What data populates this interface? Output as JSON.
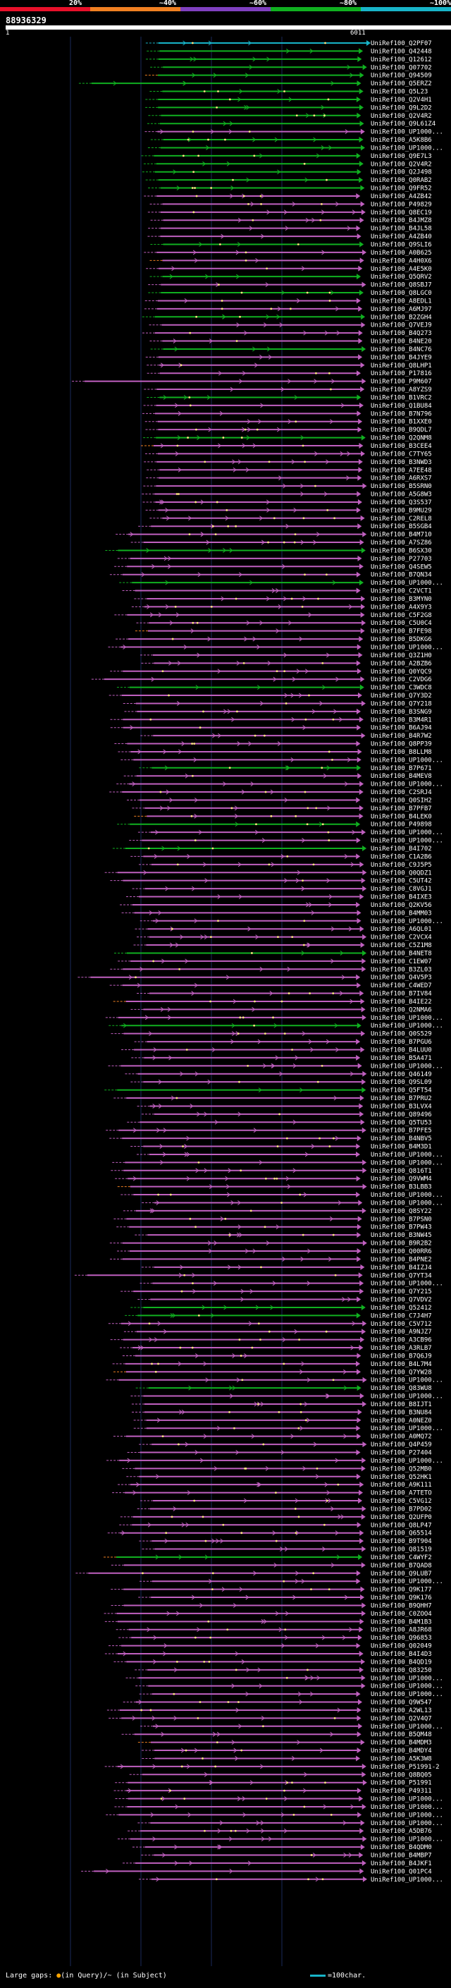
{
  "legend": {
    "labels": [
      "20%",
      "~40%",
      "~60%",
      "~80%",
      "~100%"
    ],
    "colors": [
      "#e8102a",
      "#f08022",
      "#8040c0",
      "#10b020",
      "#18b4c8"
    ]
  },
  "query": {
    "title": "88936329",
    "start": "1",
    "end": "6011"
  },
  "hits": [
    {
      "label": "UniRef100_Q2PF07",
      "color": "#18b4c8"
    },
    {
      "label": "UniRef100_Q42448",
      "color": "#10b020"
    },
    {
      "label": "UniRef100_Q12612",
      "color": "#10b020"
    },
    {
      "label": "UniRef100_Q07702",
      "color": "#10b020"
    },
    {
      "label": "UniRef100_Q94509",
      "color": "#10b020"
    },
    {
      "label": "UniRef100_Q5ERZ2",
      "color": "#10b020"
    },
    {
      "label": "UniRef100_Q5L23",
      "color": "#10b020"
    },
    {
      "label": "UniRef100_Q2V4H1",
      "color": "#10b020"
    },
    {
      "label": "UniRef100_Q9L2D2",
      "color": "#10b020"
    },
    {
      "label": "UniRef100_Q2V4R2",
      "color": "#10b020"
    },
    {
      "label": "UniRef100_Q9L61Z4",
      "color": "#10b020"
    },
    {
      "label": "UniRef100_UP1000...",
      "color": "#c060c0"
    },
    {
      "label": "UniRef100_A5K8B6",
      "color": "#10b020"
    },
    {
      "label": "UniRef100_UP1000...",
      "color": "#10b020"
    },
    {
      "label": "UniRef100_Q9E7L3",
      "color": "#10b020"
    },
    {
      "label": "UniRef100_Q2V4R2",
      "color": "#10b020"
    },
    {
      "label": "UniRef100_Q2J498",
      "color": "#10b020"
    },
    {
      "label": "UniRef100_Q0RAB2",
      "color": "#10b020"
    },
    {
      "label": "UniRef100_Q9FR52",
      "color": "#10b020"
    },
    {
      "label": "UniRef100_A4ZB42",
      "color": "#c060c0"
    },
    {
      "label": "UniRef100_P49829",
      "color": "#c060c0"
    },
    {
      "label": "UniRef100_Q8EC19",
      "color": "#c060c0"
    },
    {
      "label": "UniRef100_B4JMZ8",
      "color": "#c060c0"
    },
    {
      "label": "UniRef100_B4JL58",
      "color": "#c060c0"
    },
    {
      "label": "UniRef100_A4ZB40",
      "color": "#c060c0"
    },
    {
      "label": "UniRef100_Q9SLI6",
      "color": "#10b020"
    },
    {
      "label": "UniRef100_A0B625",
      "color": "#c060c0"
    },
    {
      "label": "UniRef100_A4H0X6",
      "color": "#c060c0"
    },
    {
      "label": "UniRef100_A4E5K0",
      "color": "#c060c0"
    },
    {
      "label": "UniRef100_Q5QRV2",
      "color": "#10b020"
    },
    {
      "label": "UniRef100_Q8SBJ7",
      "color": "#c060c0"
    },
    {
      "label": "UniRef100_Q8LGC0",
      "color": "#10b020"
    },
    {
      "label": "UniRef100_A8EDL1",
      "color": "#c060c0"
    },
    {
      "label": "UniRef100_A6MJ97",
      "color": "#c060c0"
    },
    {
      "label": "UniRef100_B2ZGH4",
      "color": "#10b020"
    },
    {
      "label": "UniRef100_Q7VEJ9",
      "color": "#c060c0"
    },
    {
      "label": "UniRef100_B4Q273",
      "color": "#c060c0"
    },
    {
      "label": "UniRef100_B4NE20",
      "color": "#c060c0"
    },
    {
      "label": "UniRef100_B4NC76",
      "color": "#10b020"
    },
    {
      "label": "UniRef100_B4JYE9",
      "color": "#c060c0"
    },
    {
      "label": "UniRef100_Q8LHP1",
      "color": "#c060c0"
    },
    {
      "label": "UniRef100_P17816",
      "color": "#c060c0"
    },
    {
      "label": "UniRef100_P9M607",
      "color": "#c060c0"
    },
    {
      "label": "UniRef100_A8YZS9",
      "color": "#c060c0"
    },
    {
      "label": "UniRef100_B1VRC2",
      "color": "#10b020"
    },
    {
      "label": "UniRef100_Q1BU84",
      "color": "#c060c0"
    },
    {
      "label": "UniRef100_B7N796",
      "color": "#c060c0"
    },
    {
      "label": "UniRef100_B1XXE0",
      "color": "#c060c0"
    },
    {
      "label": "UniRef100_B9QDL7",
      "color": "#c060c0"
    },
    {
      "label": "UniRef100_Q2QNM8",
      "color": "#10b020"
    },
    {
      "label": "UniRef100_B3CEE4",
      "color": "#c060c0"
    },
    {
      "label": "UniRef100_C7TY65",
      "color": "#c060c0"
    },
    {
      "label": "UniRef100_B3NWD3",
      "color": "#c060c0"
    },
    {
      "label": "UniRef100_A7EE48",
      "color": "#c060c0"
    },
    {
      "label": "UniRef100_A6RXS7",
      "color": "#c060c0"
    },
    {
      "label": "UniRef100_B5SRN0",
      "color": "#c060c0"
    },
    {
      "label": "UniRef100_A5G8W3",
      "color": "#c060c0"
    },
    {
      "label": "UniRef100_Q3S537",
      "color": "#c060c0"
    },
    {
      "label": "UniRef100_B9MU29",
      "color": "#c060c0"
    },
    {
      "label": "UniRef100_C2REL8",
      "color": "#c060c0"
    },
    {
      "label": "UniRef100_B5SGB4",
      "color": "#c060c0"
    },
    {
      "label": "UniRef100_B4M710",
      "color": "#c060c0"
    },
    {
      "label": "UniRef100_A7SZ86",
      "color": "#c060c0"
    },
    {
      "label": "UniRef100_B6SX30",
      "color": "#10b020"
    },
    {
      "label": "UniRef100_P27703",
      "color": "#c060c0"
    },
    {
      "label": "UniRef100_Q4SEW5",
      "color": "#c060c0"
    },
    {
      "label": "UniRef100_B7QN34",
      "color": "#c060c0"
    },
    {
      "label": "UniRef100_UP1000...",
      "color": "#10b020"
    },
    {
      "label": "UniRef100_C2VCT1",
      "color": "#c060c0"
    },
    {
      "label": "UniRef100_B3MYN0",
      "color": "#c060c0"
    },
    {
      "label": "UniRef100_A4X9Y3",
      "color": "#c060c0"
    },
    {
      "label": "UniRef100_C5F2G8",
      "color": "#c060c0"
    },
    {
      "label": "UniRef100_C5U0C4",
      "color": "#c060c0"
    },
    {
      "label": "UniRef100_B7FE98",
      "color": "#c060c0"
    },
    {
      "label": "UniRef100_B5DKG6",
      "color": "#c060c0"
    },
    {
      "label": "UniRef100_UP1000...",
      "color": "#c060c0"
    },
    {
      "label": "UniRef100_Q3Z1H0",
      "color": "#c060c0"
    },
    {
      "label": "UniRef100_A2BZB6",
      "color": "#c060c0"
    },
    {
      "label": "UniRef100_Q0YQC9",
      "color": "#c060c0"
    },
    {
      "label": "UniRef100_C2VDG6",
      "color": "#c060c0"
    },
    {
      "label": "UniRef100_C3WDC8",
      "color": "#10b020"
    },
    {
      "label": "UniRef100_Q7Y3D2",
      "color": "#c060c0"
    },
    {
      "label": "UniRef100_Q7Y218",
      "color": "#c060c0"
    },
    {
      "label": "UniRef100_B3SNG9",
      "color": "#c060c0"
    },
    {
      "label": "UniRef100_B3M4R1",
      "color": "#c060c0"
    },
    {
      "label": "UniRef100_B6AJ94",
      "color": "#c060c0"
    },
    {
      "label": "UniRef100_B4R7W2",
      "color": "#c060c0"
    },
    {
      "label": "UniRef100_Q8PP39",
      "color": "#c060c0"
    },
    {
      "label": "UniRef100_B8LLM8",
      "color": "#c060c0"
    },
    {
      "label": "UniRef100_UP1000...",
      "color": "#c060c0"
    },
    {
      "label": "UniRef100_B7P671",
      "color": "#10b020"
    },
    {
      "label": "UniRef100_B4MEV8",
      "color": "#c060c0"
    },
    {
      "label": "UniRef100_UP1000...",
      "color": "#c060c0"
    },
    {
      "label": "UniRef100_C2SRJ4",
      "color": "#c060c0"
    },
    {
      "label": "UniRef100_Q0SIH2",
      "color": "#c060c0"
    },
    {
      "label": "UniRef100_B7PFB7",
      "color": "#c060c0"
    },
    {
      "label": "UniRef100_B4LEK0",
      "color": "#c060c0"
    },
    {
      "label": "UniRef100_P49898",
      "color": "#10b020"
    },
    {
      "label": "UniRef100_UP1000...",
      "color": "#c060c0"
    },
    {
      "label": "UniRef100_UP1000...",
      "color": "#c060c0"
    },
    {
      "label": "UniRef100_B4I702",
      "color": "#10b020"
    },
    {
      "label": "UniRef100_C1A2B6",
      "color": "#c060c0"
    },
    {
      "label": "UniRef100_C9J5P5",
      "color": "#c060c0"
    },
    {
      "label": "UniRef100_Q0QDZ1",
      "color": "#c060c0"
    },
    {
      "label": "UniRef100_C5UT42",
      "color": "#c060c0"
    },
    {
      "label": "UniRef100_C8VGJ1",
      "color": "#c060c0"
    },
    {
      "label": "UniRef100_B4IXE3",
      "color": "#c060c0"
    },
    {
      "label": "UniRef100_Q2KV56",
      "color": "#c060c0"
    },
    {
      "label": "UniRef100_B4MM03",
      "color": "#c060c0"
    },
    {
      "label": "UniRef100_UP1000...",
      "color": "#c060c0"
    },
    {
      "label": "UniRef100_A6QL01",
      "color": "#c060c0"
    },
    {
      "label": "UniRef100_C2VCX4",
      "color": "#c060c0"
    },
    {
      "label": "UniRef100_C5Z1M8",
      "color": "#c060c0"
    },
    {
      "label": "UniRef100_B4NET8",
      "color": "#10b020"
    },
    {
      "label": "UniRef100_C1EW07",
      "color": "#c060c0"
    },
    {
      "label": "UniRef100_B3ZL03",
      "color": "#c060c0"
    },
    {
      "label": "UniRef100_Q4V5P3",
      "color": "#c060c0"
    },
    {
      "label": "UniRef100_C4WED7",
      "color": "#c060c0"
    },
    {
      "label": "UniRef100_B7IV84",
      "color": "#c060c0"
    },
    {
      "label": "UniRef100_B4IE22",
      "color": "#c060c0"
    },
    {
      "label": "UniRef100_Q2NMA6",
      "color": "#c060c0"
    },
    {
      "label": "UniRef100_UP1000...",
      "color": "#c060c0"
    },
    {
      "label": "UniRef100_UP1000...",
      "color": "#10b020"
    },
    {
      "label": "UniRef100_Q0S529",
      "color": "#c060c0"
    },
    {
      "label": "UniRef100_B7PGU6",
      "color": "#c060c0"
    },
    {
      "label": "UniRef100_B4LUU0",
      "color": "#c060c0"
    },
    {
      "label": "UniRef100_B5A471",
      "color": "#c060c0"
    },
    {
      "label": "UniRef100_UP1000...",
      "color": "#c060c0"
    },
    {
      "label": "UniRef100_Q46149",
      "color": "#c060c0"
    },
    {
      "label": "UniRef100_Q9SL09",
      "color": "#c060c0"
    },
    {
      "label": "UniRef100_Q5FT54",
      "color": "#10b020"
    },
    {
      "label": "UniRef100_B7PRU2",
      "color": "#c060c0"
    },
    {
      "label": "UniRef100_B3LVX4",
      "color": "#c060c0"
    },
    {
      "label": "UniRef100_Q89496",
      "color": "#c060c0"
    },
    {
      "label": "UniRef100_Q5TU53",
      "color": "#c060c0"
    },
    {
      "label": "UniRef100_B7PFE5",
      "color": "#c060c0"
    },
    {
      "label": "UniRef100_B4NBV5",
      "color": "#c060c0"
    },
    {
      "label": "UniRef100_B4M3D1",
      "color": "#c060c0"
    },
    {
      "label": "UniRef100_UP1000...",
      "color": "#c060c0"
    },
    {
      "label": "UniRef100_UP1000...",
      "color": "#c060c0"
    },
    {
      "label": "UniRef100_Q816T1",
      "color": "#c060c0"
    },
    {
      "label": "UniRef100_Q9VWM4",
      "color": "#c060c0"
    },
    {
      "label": "UniRef100_B3LBB3",
      "color": "#c060c0"
    },
    {
      "label": "UniRef100_UP1000...",
      "color": "#c060c0"
    },
    {
      "label": "UniRef100_UP1000...",
      "color": "#c060c0"
    },
    {
      "label": "UniRef100_Q8SY22",
      "color": "#c060c0"
    },
    {
      "label": "UniRef100_B7PSN0",
      "color": "#c060c0"
    },
    {
      "label": "UniRef100_B7PW43",
      "color": "#c060c0"
    },
    {
      "label": "UniRef100_B3NW45",
      "color": "#c060c0"
    },
    {
      "label": "UniRef100_B9R2B2",
      "color": "#c060c0"
    },
    {
      "label": "UniRef100_Q00RR6",
      "color": "#c060c0"
    },
    {
      "label": "UniRef100_B4PNE2",
      "color": "#c060c0"
    },
    {
      "label": "UniRef100_B4IZJ4",
      "color": "#c060c0"
    },
    {
      "label": "UniRef100_Q7YT34",
      "color": "#c060c0"
    },
    {
      "label": "UniRef100_UP1000...",
      "color": "#c060c0"
    },
    {
      "label": "UniRef100_Q7Y215",
      "color": "#c060c0"
    },
    {
      "label": "UniRef100_Q7VDV2",
      "color": "#c060c0"
    },
    {
      "label": "UniRef100_Q52412",
      "color": "#10b020"
    },
    {
      "label": "UniRef100_C7J4H7",
      "color": "#10b020"
    },
    {
      "label": "UniRef100_C5V712",
      "color": "#c060c0"
    },
    {
      "label": "UniRef100_A9NJZ7",
      "color": "#c060c0"
    },
    {
      "label": "UniRef100_A3CB96",
      "color": "#c060c0"
    },
    {
      "label": "UniRef100_A3RLB7",
      "color": "#c060c0"
    },
    {
      "label": "UniRef100_B7Q6J9",
      "color": "#c060c0"
    },
    {
      "label": "UniRef100_B4L7M4",
      "color": "#c060c0"
    },
    {
      "label": "UniRef100_Q7YW28",
      "color": "#c060c0"
    },
    {
      "label": "UniRef100_UP1000...",
      "color": "#c060c0"
    },
    {
      "label": "UniRef100_Q83WU8",
      "color": "#10b020"
    },
    {
      "label": "UniRef100_UP1000...",
      "color": "#c060c0"
    },
    {
      "label": "UniRef100_B8IJT1",
      "color": "#c060c0"
    },
    {
      "label": "UniRef100_B3NU84",
      "color": "#c060c0"
    },
    {
      "label": "UniRef100_A0NEZ0",
      "color": "#c060c0"
    },
    {
      "label": "UniRef100_UP1000...",
      "color": "#c060c0"
    },
    {
      "label": "UniRef100_A0MQ72",
      "color": "#c060c0"
    },
    {
      "label": "UniRef100_Q4P459",
      "color": "#c060c0"
    },
    {
      "label": "UniRef100_P27404",
      "color": "#c060c0"
    },
    {
      "label": "UniRef100_UP1000...",
      "color": "#c060c0"
    },
    {
      "label": "UniRef100_Q52MB0",
      "color": "#c060c0"
    },
    {
      "label": "UniRef100_Q52HK1",
      "color": "#c060c0"
    },
    {
      "label": "UniRef100_A9K111",
      "color": "#c060c0"
    },
    {
      "label": "UniRef100_A7TETO",
      "color": "#c060c0"
    },
    {
      "label": "UniRef100_C5VG12",
      "color": "#c060c0"
    },
    {
      "label": "UniRef100_B7PD02",
      "color": "#c060c0"
    },
    {
      "label": "UniRef100_Q2UFP0",
      "color": "#c060c0"
    },
    {
      "label": "UniRef100_Q8LP47",
      "color": "#c060c0"
    },
    {
      "label": "UniRef100_Q65514",
      "color": "#c060c0"
    },
    {
      "label": "UniRef100_B9T904",
      "color": "#c060c0"
    },
    {
      "label": "UniRef100_Q81519",
      "color": "#c060c0"
    },
    {
      "label": "UniRef100_C4WYF2",
      "color": "#10b020"
    },
    {
      "label": "UniRef100_B7QAD8",
      "color": "#c060c0"
    },
    {
      "label": "UniRef100_Q9LUB7",
      "color": "#c060c0"
    },
    {
      "label": "UniRef100_UP1000...",
      "color": "#c060c0"
    },
    {
      "label": "UniRef100_Q9K177",
      "color": "#c060c0"
    },
    {
      "label": "UniRef100_Q9K176",
      "color": "#c060c0"
    },
    {
      "label": "UniRef100_B9QHH7",
      "color": "#c060c0"
    },
    {
      "label": "UniRef100_C0ZOO4",
      "color": "#c060c0"
    },
    {
      "label": "UniRef100_B4M1B3",
      "color": "#c060c0"
    },
    {
      "label": "UniRef100_A8JR68",
      "color": "#c060c0"
    },
    {
      "label": "UniRef100_Q96853",
      "color": "#c060c0"
    },
    {
      "label": "UniRef100_Q02049",
      "color": "#c060c0"
    },
    {
      "label": "UniRef100_B4I4D3",
      "color": "#c060c0"
    },
    {
      "label": "UniRef100_B4QD19",
      "color": "#c060c0"
    },
    {
      "label": "UniRef100_Q83250",
      "color": "#c060c0"
    },
    {
      "label": "UniRef100_UP1000...",
      "color": "#c060c0"
    },
    {
      "label": "UniRef100_UP1000...",
      "color": "#c060c0"
    },
    {
      "label": "UniRef100_UP1000...",
      "color": "#c060c0"
    },
    {
      "label": "UniRef100_Q9W547",
      "color": "#c060c0"
    },
    {
      "label": "UniRef100_A2WL13",
      "color": "#c060c0"
    },
    {
      "label": "UniRef100_Q2V4Q7",
      "color": "#c060c0"
    },
    {
      "label": "UniRef100_UP1000...",
      "color": "#c060c0"
    },
    {
      "label": "UniRef100_B5QM48",
      "color": "#c060c0"
    },
    {
      "label": "UniRef100_B4MDM3",
      "color": "#c060c0"
    },
    {
      "label": "UniRef100_B4MDY4",
      "color": "#c060c0"
    },
    {
      "label": "UniRef100_A5K3W8",
      "color": "#c060c0"
    },
    {
      "label": "UniRef100_P51991-2",
      "color": "#c060c0"
    },
    {
      "label": "UniRef100_Q8BQ05",
      "color": "#c060c0"
    },
    {
      "label": "UniRef100_P51991",
      "color": "#c060c0"
    },
    {
      "label": "UniRef100_P49311",
      "color": "#c060c0"
    },
    {
      "label": "UniRef100_UP1000...",
      "color": "#c060c0"
    },
    {
      "label": "UniRef100_UP1000...",
      "color": "#c060c0"
    },
    {
      "label": "UniRef100_UP1000...",
      "color": "#c060c0"
    },
    {
      "label": "UniRef100_UP1000...",
      "color": "#c060c0"
    },
    {
      "label": "UniRef100_A5DB76",
      "color": "#c060c0"
    },
    {
      "label": "UniRef100_UP1000...",
      "color": "#c060c0"
    },
    {
      "label": "UniRef100_B4QDM0",
      "color": "#c060c0"
    },
    {
      "label": "UniRef100_B4MBP7",
      "color": "#c060c0"
    },
    {
      "label": "UniRef100_B4JKF1",
      "color": "#c060c0"
    },
    {
      "label": "UniRef100_Q01PC4",
      "color": "#c060c0"
    },
    {
      "label": "UniRef100_UP1000...",
      "color": "#c060c0"
    }
  ],
  "footer": {
    "large_gaps_prefix": "Large gaps:",
    "query_gap_icon": "orange-dot-icon",
    "query_gap_text": "(in Query)",
    "subject_gap_text": "/~ (in Subject)",
    "scale_text": "=100char."
  }
}
